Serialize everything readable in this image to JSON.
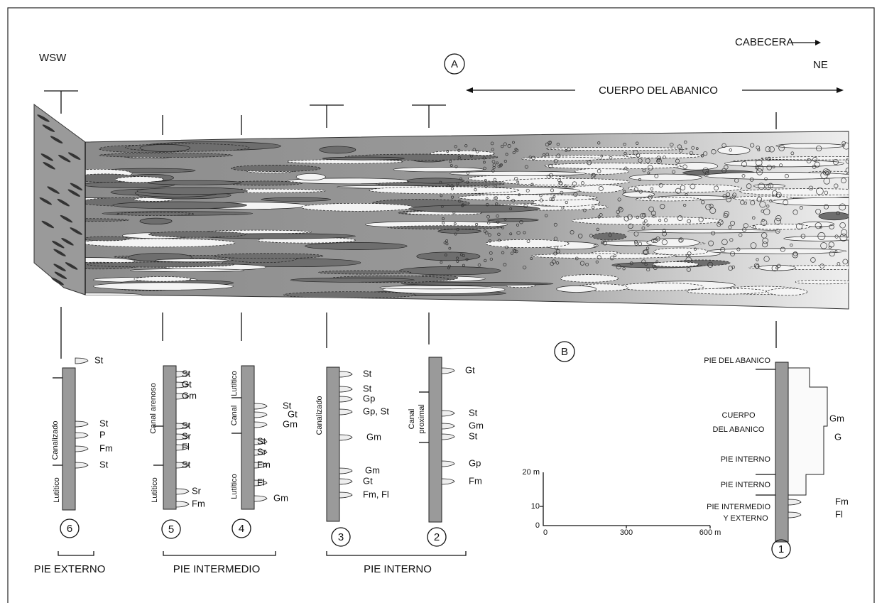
{
  "top": {
    "west": "WSW",
    "head": "CABECERA",
    "east": "NE",
    "panel_a": "A",
    "body": "CUERPO DEL ABANICO",
    "panel_b": "B"
  },
  "columns": [
    {
      "number": "6",
      "sides": [
        "Canalizado",
        "Lutítico"
      ],
      "facies": [
        "St",
        "St",
        "P",
        "Fm",
        "St"
      ]
    },
    {
      "number": "5",
      "sides": [
        "Canal arenoso",
        "Lutítico"
      ],
      "facies": [
        "St",
        "Gt",
        "Gm",
        "St",
        "Sr",
        "Fl",
        "St",
        "Sr",
        "Fm"
      ]
    },
    {
      "number": "4",
      "sides": [
        "Lutítico",
        "Canal",
        "Lutítico"
      ],
      "facies": [
        "St",
        "Gt",
        "Gm",
        "St",
        "Sr",
        "Fm",
        "Fl",
        "Gm"
      ]
    },
    {
      "number": "3",
      "sides": [
        "Canalizado"
      ],
      "facies": [
        "St",
        "St",
        "Gp",
        "Gp, St",
        "Gm",
        "Gm",
        "Gt",
        "Fm, Fl"
      ]
    },
    {
      "number": "2",
      "sides": [
        "Canal",
        "proximal"
      ],
      "facies": [
        "Gt",
        "St",
        "Gm",
        "St",
        "Gp",
        "Fm"
      ]
    },
    {
      "number": "1",
      "sides": [
        "PIE DEL ABANICO",
        "CUERPO",
        "DEL ABANICO",
        "PIE INTERNO",
        "PIE INTERNO",
        "PIE INTERMEDIO",
        "Y EXTERNO"
      ],
      "facies": [
        "Gm",
        "G",
        "Fm",
        "Fl"
      ]
    }
  ],
  "groups": [
    "PIE EXTERNO",
    "PIE INTERMEDIO",
    "PIE INTERNO"
  ],
  "scale": {
    "y_labels": [
      "0",
      "10",
      "20 m"
    ],
    "x_labels": [
      "0",
      "300",
      "600 m"
    ]
  }
}
